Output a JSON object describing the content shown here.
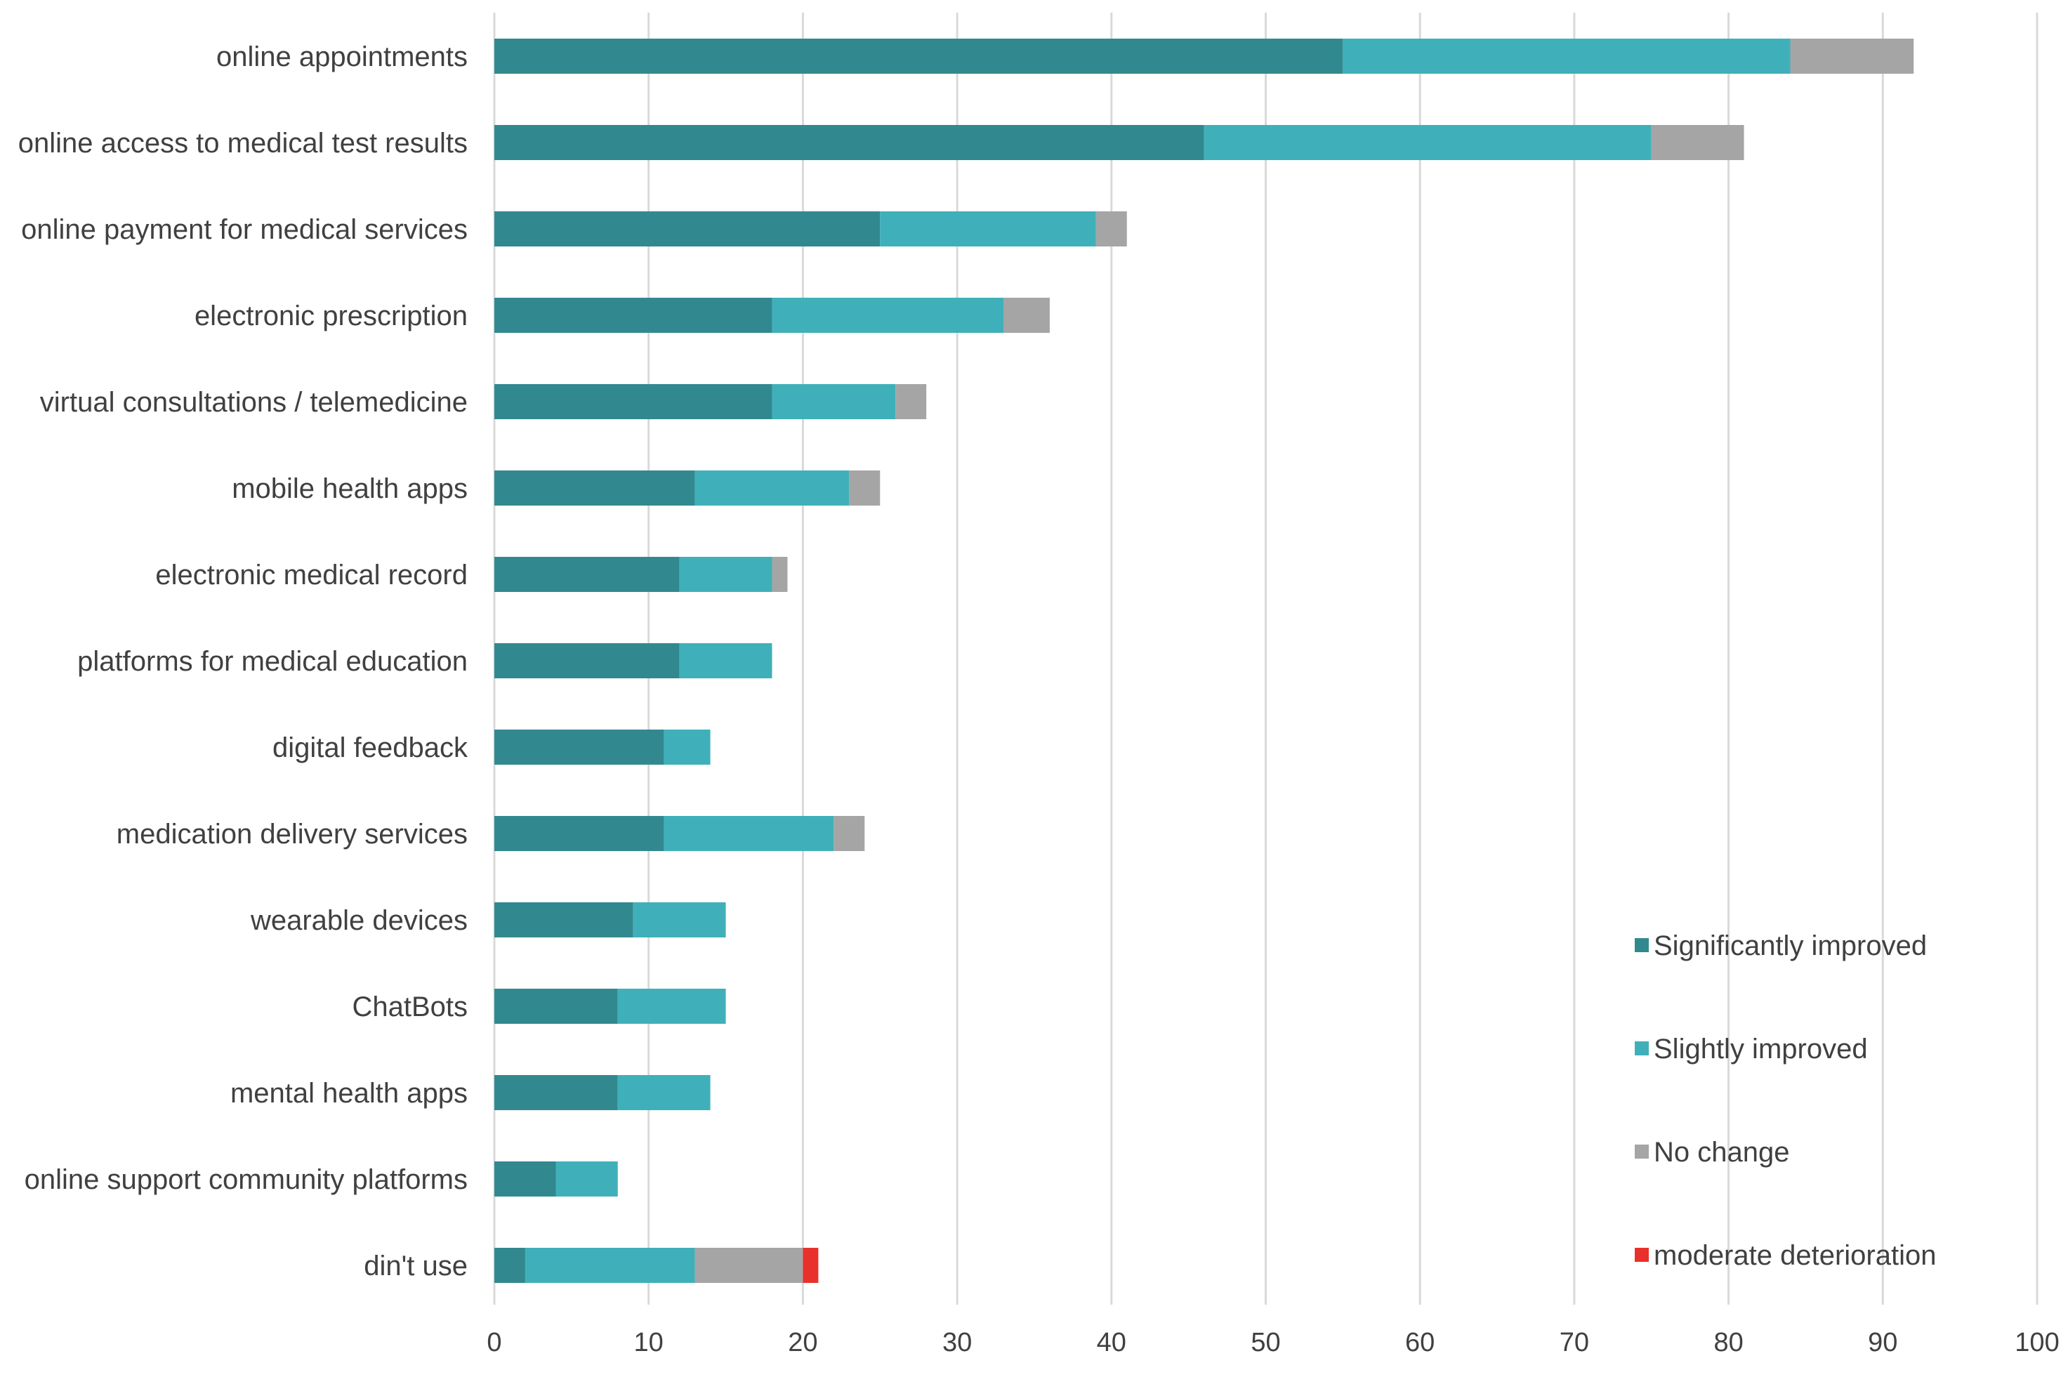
{
  "chart_data": {
    "type": "bar",
    "orientation": "horizontal",
    "stacked": true,
    "title": "",
    "xlabel": "",
    "ylabel": "",
    "xlim": [
      0,
      100
    ],
    "x_ticks": [
      0,
      10,
      20,
      30,
      40,
      50,
      60,
      70,
      80,
      90,
      100
    ],
    "grid": true,
    "legend_position": "bottom-right",
    "categories": [
      "online appointments",
      "online access to medical test results",
      "online payment for medical services",
      "electronic prescription",
      "virtual consultations / telemedicine",
      "mobile health apps",
      "electronic medical record",
      "platforms for medical education",
      "digital feedback",
      "medication delivery services",
      "wearable devices",
      "ChatBots",
      "mental health apps",
      "online support community platforms",
      "din't use"
    ],
    "series": [
      {
        "name": "Significantly improved",
        "color": "#31898f",
        "values": [
          55,
          46,
          25,
          18,
          18,
          13,
          12,
          12,
          11,
          11,
          9,
          8,
          8,
          4,
          2
        ]
      },
      {
        "name": "Slightly improved",
        "color": "#3fb0b9",
        "values": [
          29,
          29,
          14,
          15,
          8,
          10,
          6,
          6,
          3,
          11,
          6,
          7,
          6,
          4,
          11
        ]
      },
      {
        "name": "No change",
        "color": "#a5a5a5",
        "values": [
          8,
          6,
          2,
          3,
          2,
          2,
          1,
          0,
          0,
          2,
          0,
          0,
          0,
          0,
          7
        ]
      },
      {
        "name": "moderate deterioration",
        "color": "#e8312a",
        "values": [
          0,
          0,
          0,
          0,
          0,
          0,
          0,
          0,
          0,
          0,
          0,
          0,
          0,
          0,
          1
        ]
      }
    ]
  }
}
